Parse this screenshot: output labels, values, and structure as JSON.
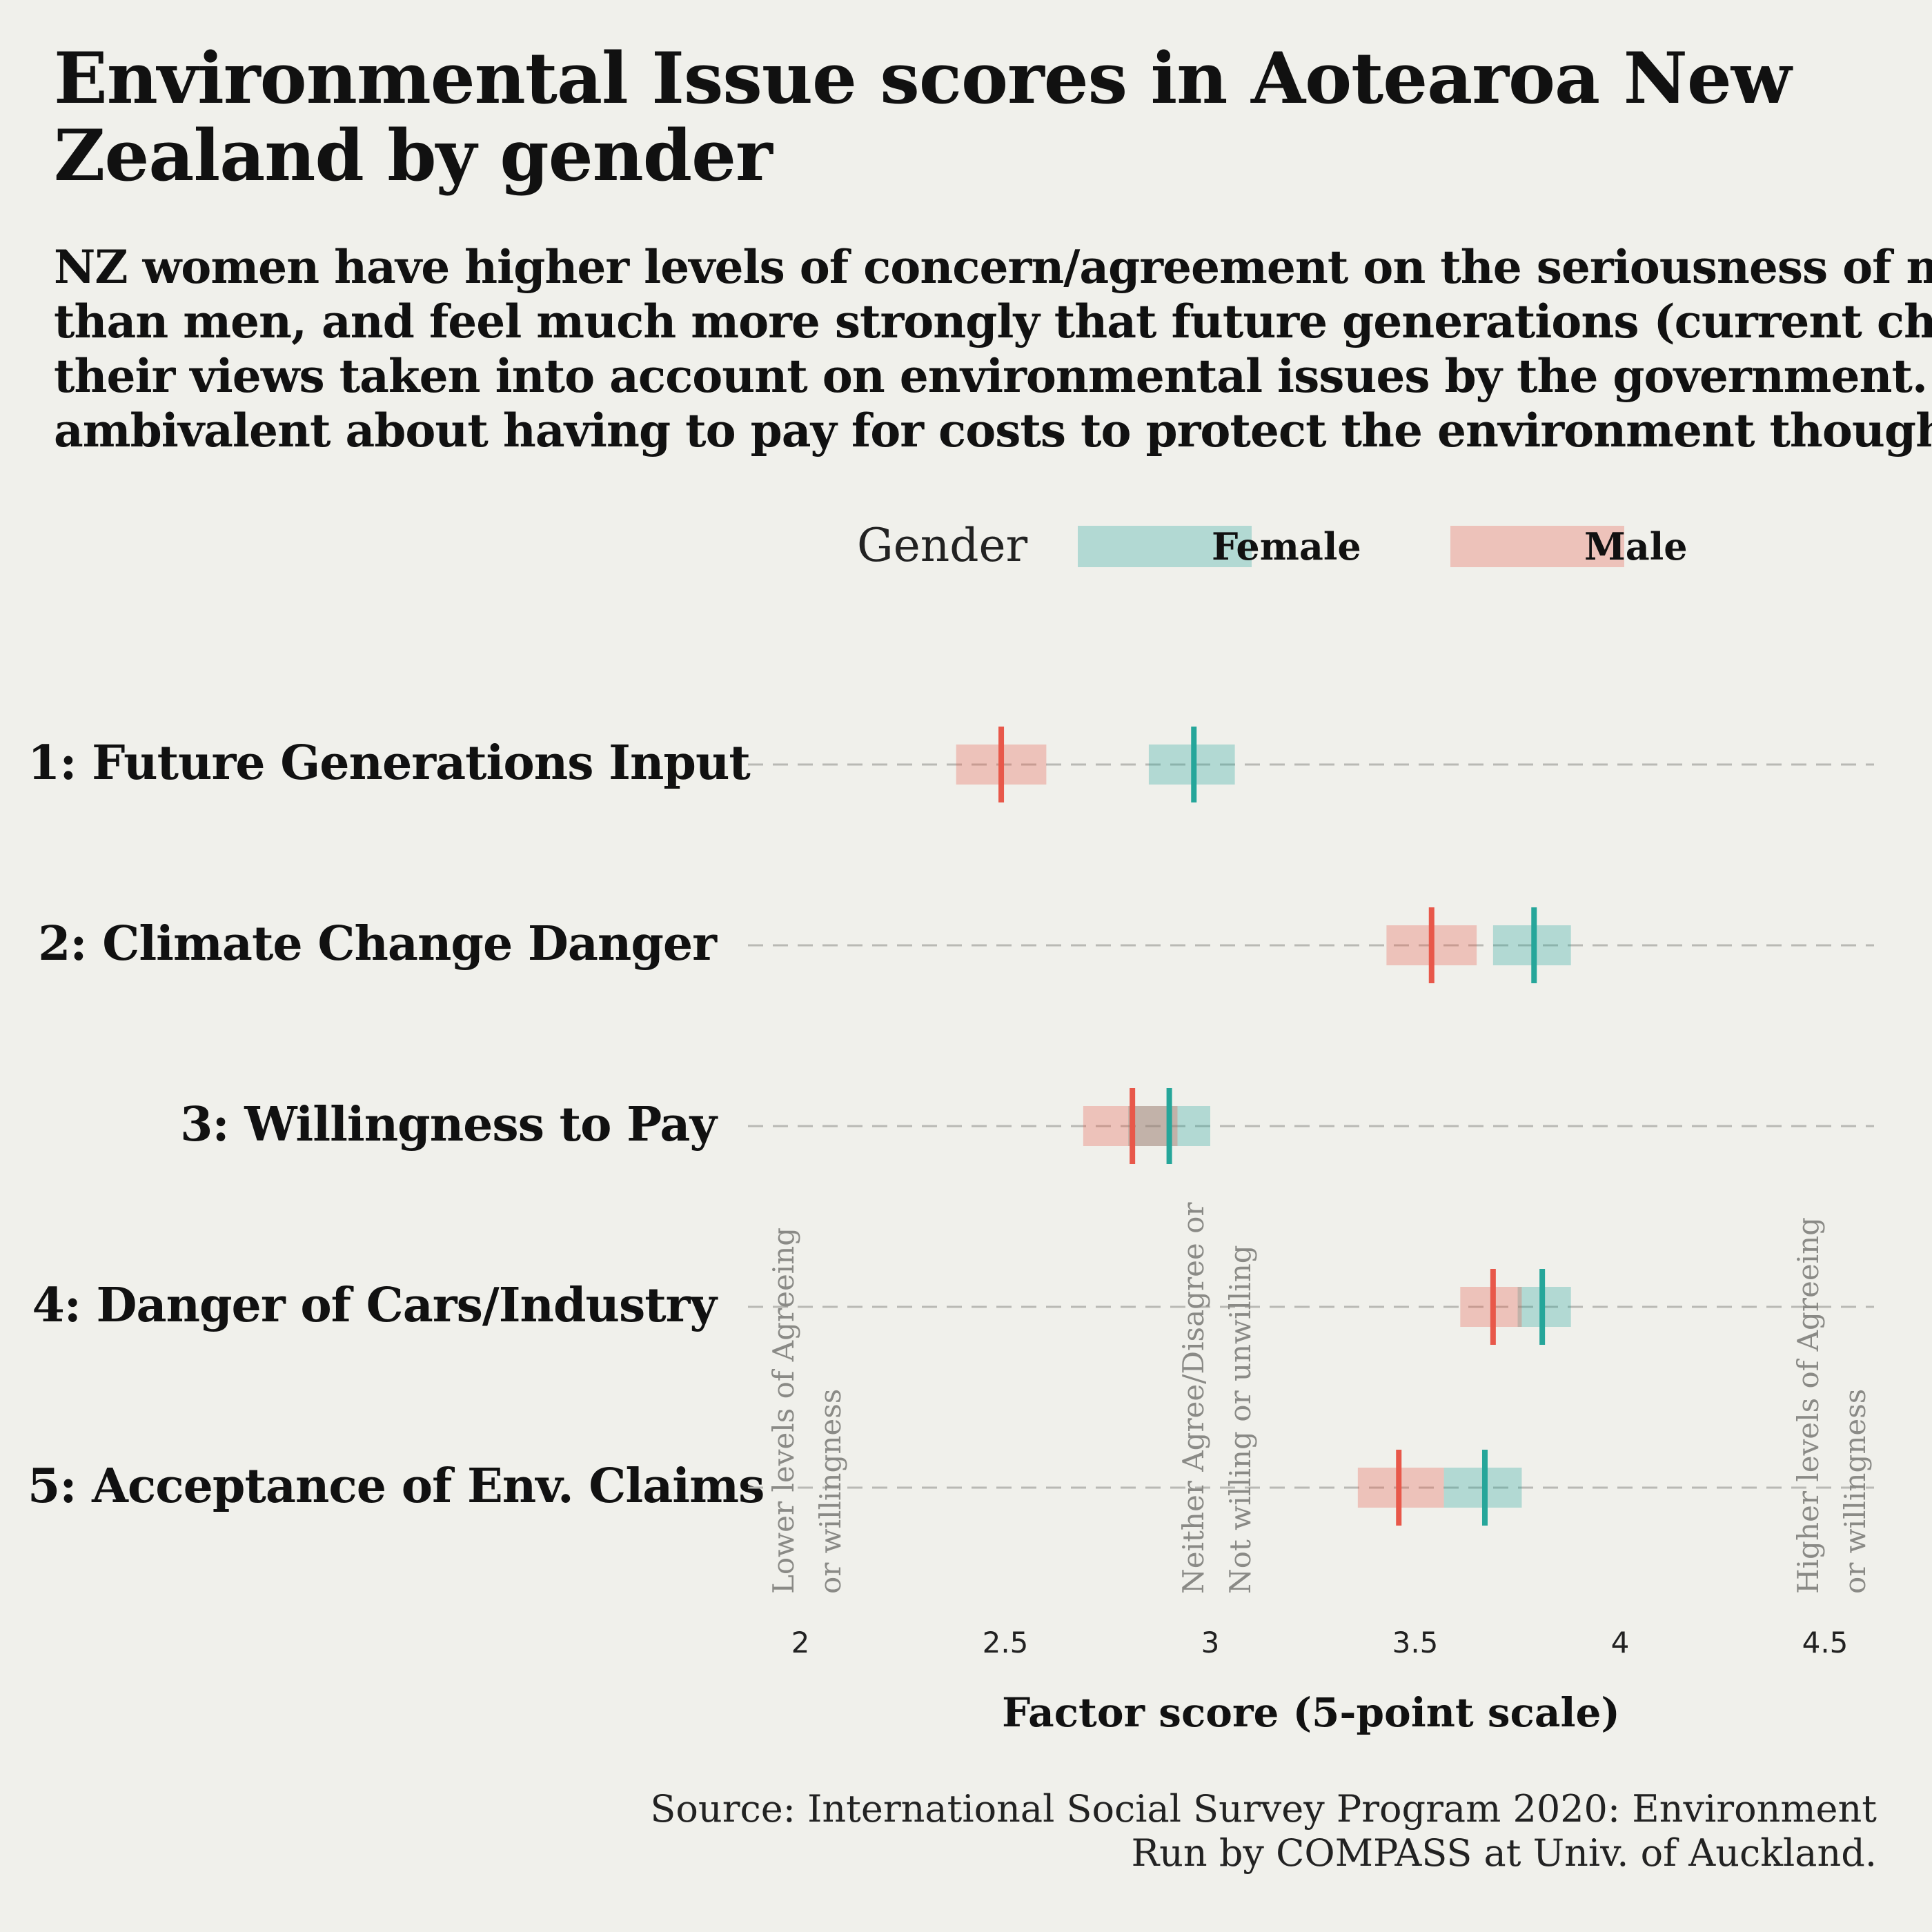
{
  "title": "Environmental Issue scores in Aotearoa New Zealand by gender",
  "subtitle_lines": [
    "NZ women have higher levels of concern/agreement on the seriousness of most e",
    "than men, and feel much more strongly that future generations (current childre",
    "their views taken into account on environmental issues by the government. Both",
    "ambivalent about having to pay for costs to protect the environment though."
  ],
  "legend": {
    "title": "Gender",
    "items": [
      {
        "label": "Female",
        "color": "#26a69a"
      },
      {
        "label": "Male",
        "color": "#e8584a"
      }
    ]
  },
  "source_lines": [
    "Source: International Social Survey Program 2020: Environment",
    "Run by COMPASS at Univ. of Auckland."
  ],
  "chart_data": {
    "type": "interval",
    "xlabel": "Factor score (5-point scale)",
    "xlim": [
      2,
      4.5
    ],
    "ticks": [
      {
        "value": 2,
        "label": "2"
      },
      {
        "value": 2.5,
        "label": "2.5"
      },
      {
        "value": 3,
        "label": "3"
      },
      {
        "value": 3.5,
        "label": "3.5"
      },
      {
        "value": 4,
        "label": "4"
      },
      {
        "value": 4.5,
        "label": "4.5"
      }
    ],
    "categories": [
      "1: Future Generations Input",
      "2: Climate Change Danger",
      "3: Willingness to Pay",
      "4: Danger of Cars/Industry",
      "5: Acceptance of Env. Claims"
    ],
    "series": [
      {
        "name": "Female",
        "color": "#26a69a",
        "mean": [
          2.96,
          3.79,
          2.9,
          3.81,
          3.67
        ],
        "low": [
          2.85,
          3.69,
          2.8,
          3.75,
          3.57
        ],
        "high": [
          3.06,
          3.88,
          3.0,
          3.88,
          3.76
        ]
      },
      {
        "name": "Male",
        "color": "#e8584a",
        "mean": [
          2.49,
          3.54,
          2.81,
          3.69,
          3.46
        ],
        "low": [
          2.38,
          3.43,
          2.69,
          3.61,
          3.36
        ],
        "high": [
          2.6,
          3.65,
          2.92,
          3.76,
          3.57
        ]
      }
    ],
    "annotations": [
      {
        "x": 2,
        "lines": [
          "Lower levels of Agreeing",
          "or willingness"
        ]
      },
      {
        "x": 3,
        "lines": [
          "Neither Agree/Disagree or",
          "Not willing or unwilling"
        ]
      },
      {
        "x": 4.5,
        "lines": [
          "Higher levels of Agreeing",
          "or willingness"
        ]
      }
    ],
    "grid": "horizontal dashed"
  }
}
